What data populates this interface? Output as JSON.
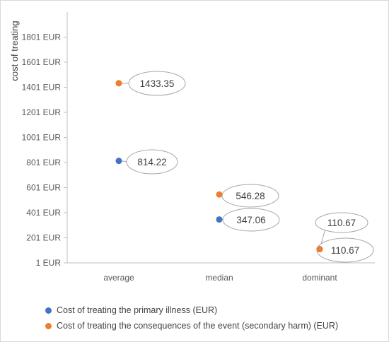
{
  "chart_data": {
    "type": "scatter",
    "ylabel": "cost of treating",
    "ytick_labels": [
      "1 EUR",
      "201 EUR",
      "401 EUR",
      "601 EUR",
      "801 EUR",
      "1001 EUR",
      "1201 EUR",
      "1401 EUR",
      "1601 EUR",
      "1801 EUR"
    ],
    "ylim": [
      1,
      2001
    ],
    "categories": [
      "average",
      "median",
      "dominant"
    ],
    "series": [
      {
        "name": "Cost of treating the primary illness (EUR)",
        "color": "#4472c4",
        "values": [
          814.22,
          347.06,
          110.67
        ]
      },
      {
        "name": "Cost of treating the consequences of the event (secondary harm) (EUR)",
        "color": "#ed7d31",
        "values": [
          1433.35,
          546.28,
          110.67
        ]
      }
    ],
    "data_labels": [
      {
        "category": "average",
        "series": 1,
        "text": "1433.35"
      },
      {
        "category": "average",
        "series": 0,
        "text": "814.22"
      },
      {
        "category": "median",
        "series": 1,
        "text": "546.28"
      },
      {
        "category": "median",
        "series": 0,
        "text": "347.06"
      },
      {
        "category": "dominant",
        "series": 0,
        "text": "110.67"
      },
      {
        "category": "dominant",
        "series": 1,
        "text": "110.67"
      }
    ],
    "legend_position": "bottom"
  }
}
